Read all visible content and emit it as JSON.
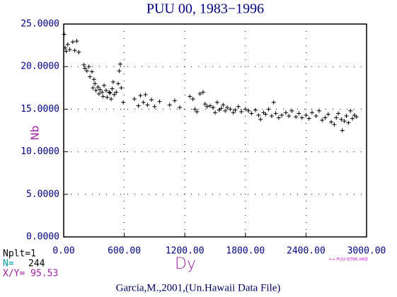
{
  "chart_data": {
    "type": "scatter",
    "title": "PUU 00, 1983−1996",
    "x_label": "Dy",
    "y_label": "Nb",
    "footer": "Garcia,M.,2001,(Un.Hawaii Data File)",
    "legend_text": "+= PUU-8396.HKB",
    "info": {
      "nplt": "Nplt=1",
      "n_label": "N=",
      "n": 244,
      "xy": "X/Y= 95.53"
    },
    "color": "#000000",
    "grid": true,
    "xlim": [
      0,
      3000
    ],
    "xticks": [
      {
        "value": 0,
        "label": "0.00"
      },
      {
        "value": 600,
        "label": "600.00"
      },
      {
        "value": 1200,
        "label": "1200.00"
      },
      {
        "value": 1800,
        "label": "1800.00"
      },
      {
        "value": 2400,
        "label": "2400.00"
      },
      {
        "value": 3000,
        "label": "3000.00"
      }
    ],
    "ylim": [
      0,
      25
    ],
    "yticks": [
      {
        "value": 0,
        "label": "0.0000"
      },
      {
        "value": 5,
        "label": "5.0000"
      },
      {
        "value": 10,
        "label": "10.0000"
      },
      {
        "value": 15,
        "label": "15.0000"
      },
      {
        "value": 20,
        "label": "20.0000"
      },
      {
        "value": 25,
        "label": "25.0000"
      }
    ],
    "x": [
      5,
      15,
      25,
      40,
      60,
      90,
      110,
      130,
      150,
      200,
      210,
      230,
      250,
      260,
      280,
      290,
      300,
      310,
      320,
      340,
      350,
      360,
      380,
      390,
      400,
      420,
      430,
      450,
      460,
      470,
      480,
      490,
      500,
      520,
      540,
      550,
      560,
      570,
      590,
      700,
      740,
      760,
      790,
      810,
      830,
      870,
      900,
      950,
      1050,
      1100,
      1150,
      1250,
      1280,
      1300,
      1320,
      1350,
      1380,
      1400,
      1420,
      1450,
      1480,
      1500,
      1520,
      1540,
      1560,
      1580,
      1600,
      1620,
      1650,
      1680,
      1700,
      1730,
      1760,
      1800,
      1830,
      1860,
      1900,
      1930,
      1950,
      1980,
      2000,
      2030,
      2060,
      2080,
      2100,
      2130,
      2160,
      2200,
      2230,
      2260,
      2300,
      2330,
      2360,
      2400,
      2430,
      2460,
      2500,
      2530,
      2560,
      2590,
      2620,
      2650,
      2680,
      2700,
      2720,
      2750,
      2760,
      2780,
      2800,
      2820,
      2840,
      2860,
      2880,
      2900
    ],
    "values": [
      23.8,
      22.2,
      21.8,
      22.6,
      22.0,
      22.9,
      21.9,
      23.0,
      21.7,
      20.2,
      19.8,
      19.5,
      20.0,
      18.8,
      19.4,
      17.5,
      18.5,
      18.0,
      17.2,
      17.6,
      16.8,
      17.3,
      17.0,
      16.5,
      17.8,
      17.2,
      16.4,
      17.0,
      16.9,
      16.2,
      17.4,
      18.2,
      16.7,
      17.0,
      18.0,
      19.5,
      20.3,
      17.5,
      15.8,
      16.2,
      15.4,
      16.6,
      15.8,
      16.7,
      15.5,
      16.1,
      15.3,
      15.9,
      15.5,
      16.0,
      15.2,
      16.5,
      16.2,
      15.0,
      14.7,
      16.8,
      17.0,
      15.6,
      15.3,
      15.4,
      15.2,
      14.6,
      15.8,
      14.9,
      15.1,
      15.5,
      14.8,
      15.2,
      15.0,
      14.6,
      14.9,
      15.3,
      14.7,
      15.0,
      14.8,
      14.5,
      14.9,
      14.3,
      13.8,
      14.6,
      14.4,
      15.0,
      14.2,
      15.8,
      14.5,
      14.0,
      14.3,
      14.6,
      14.2,
      14.8,
      14.1,
      14.5,
      14.0,
      14.3,
      13.9,
      14.6,
      14.2,
      14.8,
      13.7,
      14.0,
      14.4,
      13.5,
      13.2,
      14.0,
      14.5,
      13.8,
      12.5,
      13.6,
      14.2,
      13.4,
      14.8,
      13.9,
      14.3,
      14.1
    ]
  }
}
